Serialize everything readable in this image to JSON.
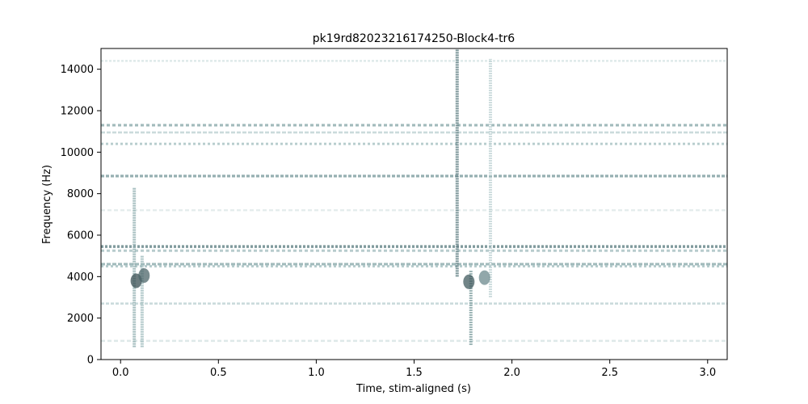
{
  "chart_data": {
    "type": "heatmap",
    "title": "pk19rd82023216174250-Block4-tr6",
    "xlabel": "Time, stim-aligned (s)",
    "ylabel": "Frequency (Hz)",
    "xlim": [
      -0.1,
      3.1
    ],
    "ylim": [
      0,
      15000
    ],
    "x_ticks": [
      0.0,
      0.5,
      1.0,
      1.5,
      2.0,
      2.5,
      3.0
    ],
    "x_tick_labels": [
      "0.0",
      "0.5",
      "1.0",
      "1.5",
      "2.0",
      "2.5",
      "3.0"
    ],
    "y_ticks": [
      0,
      2000,
      4000,
      6000,
      8000,
      10000,
      12000,
      14000
    ],
    "y_tick_labels": [
      "0",
      "2000",
      "4000",
      "6000",
      "8000",
      "10000",
      "12000",
      "14000"
    ],
    "grid": false,
    "colormap": [
      "#ffffff",
      "#d9e6e6",
      "#9fbcbd",
      "#5f7e82",
      "#2f4347"
    ],
    "horizontal_bands_hz": [
      {
        "freq": 14400,
        "intensity": 0.25
      },
      {
        "freq": 11300,
        "intensity": 0.55
      },
      {
        "freq": 10950,
        "intensity": 0.35
      },
      {
        "freq": 10400,
        "intensity": 0.45
      },
      {
        "freq": 8850,
        "intensity": 0.6
      },
      {
        "freq": 7200,
        "intensity": 0.2
      },
      {
        "freq": 5450,
        "intensity": 0.7
      },
      {
        "freq": 5250,
        "intensity": 0.45
      },
      {
        "freq": 4600,
        "intensity": 0.55
      },
      {
        "freq": 4500,
        "intensity": 0.45
      },
      {
        "freq": 2700,
        "intensity": 0.35
      },
      {
        "freq": 900,
        "intensity": 0.25
      }
    ],
    "vertical_events_s": [
      {
        "time": 0.07,
        "f_low": 600,
        "f_high": 8300,
        "intensity": 0.55
      },
      {
        "time": 0.11,
        "f_low": 600,
        "f_high": 5000,
        "intensity": 0.5
      },
      {
        "time": 1.72,
        "f_low": 4000,
        "f_high": 15000,
        "intensity": 0.75
      },
      {
        "time": 1.79,
        "f_low": 700,
        "f_high": 4300,
        "intensity": 0.6
      },
      {
        "time": 1.89,
        "f_low": 3000,
        "f_high": 14500,
        "intensity": 0.35
      }
    ],
    "hot_spots": [
      {
        "time": 0.08,
        "freq": 3800,
        "intensity": 0.95
      },
      {
        "time": 0.12,
        "freq": 4050,
        "intensity": 0.85
      },
      {
        "time": 1.78,
        "freq": 3750,
        "intensity": 0.9
      },
      {
        "time": 1.86,
        "freq": 3950,
        "intensity": 0.7
      }
    ]
  }
}
